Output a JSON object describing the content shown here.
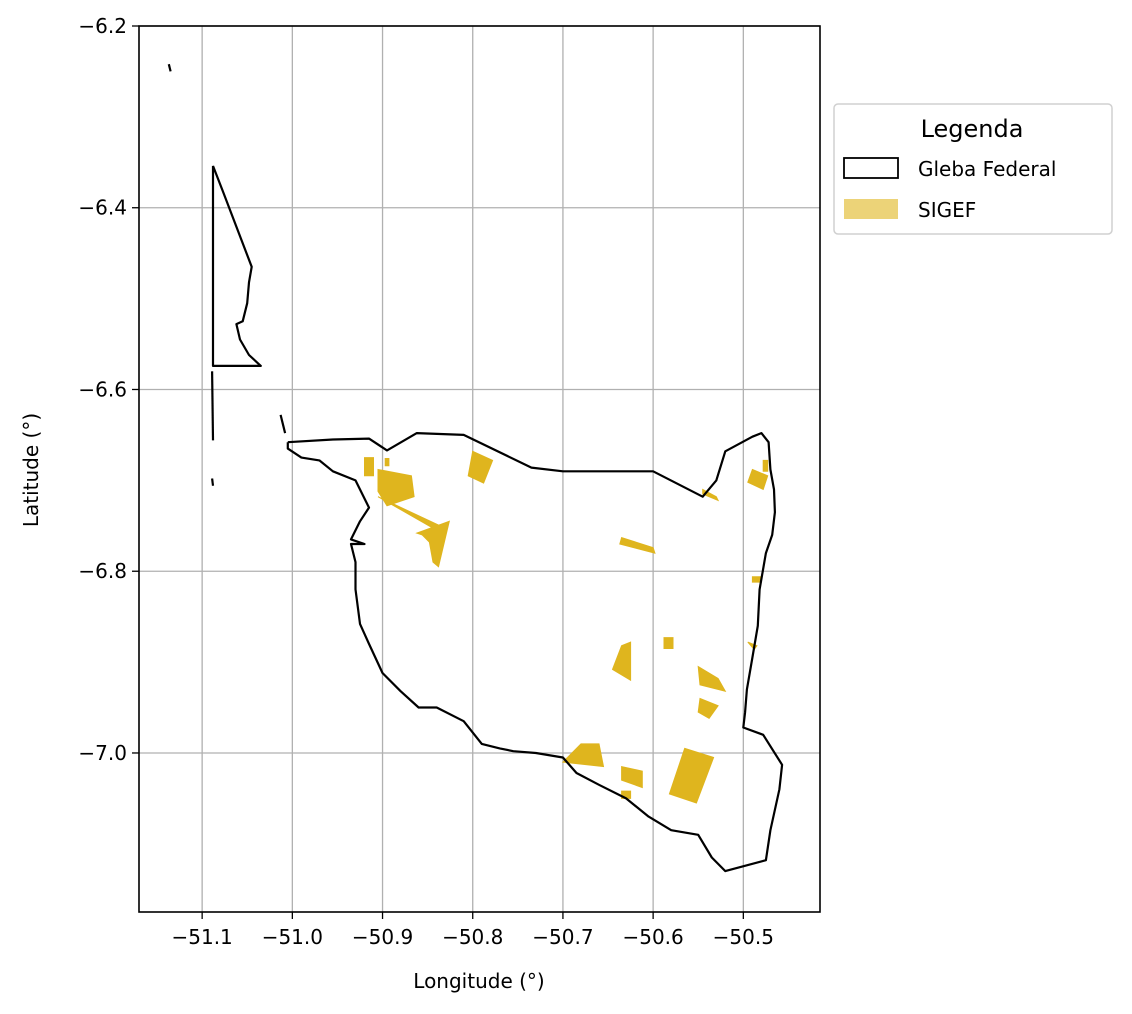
{
  "chart_data": {
    "type": "map",
    "xlabel": "Longitude (°)",
    "ylabel": "Latitude (°)",
    "xlim": [
      -51.17,
      -50.415
    ],
    "ylim": [
      -7.175,
      -6.2
    ],
    "grid": true,
    "xticks": [
      {
        "value": -51.1,
        "label": "−51.1"
      },
      {
        "value": -51.0,
        "label": "−51.0"
      },
      {
        "value": -50.9,
        "label": "−50.9"
      },
      {
        "value": -50.8,
        "label": "−50.8"
      },
      {
        "value": -50.7,
        "label": "−50.7"
      },
      {
        "value": -50.6,
        "label": "−50.6"
      },
      {
        "value": -50.5,
        "label": "−50.5"
      }
    ],
    "yticks": [
      {
        "value": -6.2,
        "label": "−6.2"
      },
      {
        "value": -6.4,
        "label": "−6.4"
      },
      {
        "value": -6.6,
        "label": "−6.6"
      },
      {
        "value": -6.8,
        "label": "−6.8"
      },
      {
        "value": -7.0,
        "label": "−7.0"
      }
    ],
    "legend": {
      "title": "Legenda",
      "placement": "outside-upper-right",
      "entries": [
        {
          "label": "Gleba Federal",
          "style": "outline",
          "color": "#000000"
        },
        {
          "label": "SIGEF",
          "style": "fill",
          "color": "#dfb51e"
        }
      ]
    },
    "colors": {
      "gleba_outline": "#000000",
      "sigef_fill": "#dfb51e",
      "grid": "#b0b0b0"
    },
    "gleba_federal": [
      [
        [
          -51.088,
          -6.354
        ],
        [
          -51.077,
          -6.382
        ],
        [
          -51.045,
          -6.465
        ],
        [
          -51.048,
          -6.482
        ],
        [
          -51.05,
          -6.505
        ],
        [
          -51.055,
          -6.525
        ],
        [
          -51.062,
          -6.528
        ],
        [
          -51.058,
          -6.545
        ],
        [
          -51.048,
          -6.562
        ],
        [
          -51.035,
          -6.574
        ],
        [
          -51.088,
          -6.574
        ],
        [
          -51.088,
          -6.354
        ]
      ],
      [
        [
          -51.089,
          -6.58
        ],
        [
          -51.088,
          -6.656
        ]
      ],
      [
        [
          -51.089,
          -6.698
        ],
        [
          -51.088,
          -6.706
        ]
      ],
      [
        [
          -51.137,
          -6.242
        ],
        [
          -51.135,
          -6.25
        ]
      ],
      [
        [
          -51.013,
          -6.628
        ],
        [
          -51.01,
          -6.64
        ],
        [
          -51.008,
          -6.648
        ]
      ],
      [
        [
          -51.005,
          -6.658
        ],
        [
          -50.955,
          -6.655
        ],
        [
          -50.915,
          -6.654
        ],
        [
          -50.895,
          -6.667
        ],
        [
          -50.862,
          -6.648
        ],
        [
          -50.81,
          -6.65
        ],
        [
          -50.735,
          -6.686
        ],
        [
          -50.7,
          -6.69
        ],
        [
          -50.6,
          -6.69
        ],
        [
          -50.545,
          -6.718
        ],
        [
          -50.53,
          -6.7
        ],
        [
          -50.52,
          -6.668
        ],
        [
          -50.49,
          -6.652
        ],
        [
          -50.48,
          -6.648
        ],
        [
          -50.472,
          -6.658
        ],
        [
          -50.47,
          -6.688
        ],
        [
          -50.466,
          -6.71
        ],
        [
          -50.465,
          -6.735
        ],
        [
          -50.468,
          -6.76
        ],
        [
          -50.475,
          -6.78
        ],
        [
          -50.482,
          -6.82
        ],
        [
          -50.484,
          -6.86
        ],
        [
          -50.49,
          -6.895
        ],
        [
          -50.496,
          -6.93
        ],
        [
          -50.498,
          -6.955
        ],
        [
          -50.5,
          -6.972
        ],
        [
          -50.478,
          -6.98
        ],
        [
          -50.457,
          -7.013
        ],
        [
          -50.46,
          -7.04
        ],
        [
          -50.47,
          -7.085
        ],
        [
          -50.475,
          -7.118
        ],
        [
          -50.52,
          -7.13
        ],
        [
          -50.535,
          -7.115
        ],
        [
          -50.55,
          -7.09
        ],
        [
          -50.58,
          -7.085
        ],
        [
          -50.605,
          -7.07
        ],
        [
          -50.63,
          -7.05
        ],
        [
          -50.66,
          -7.035
        ],
        [
          -50.685,
          -7.022
        ],
        [
          -50.7,
          -7.005
        ],
        [
          -50.73,
          -7.0
        ],
        [
          -50.755,
          -6.998
        ],
        [
          -50.77,
          -6.995
        ],
        [
          -50.79,
          -6.99
        ],
        [
          -50.81,
          -6.965
        ],
        [
          -50.84,
          -6.95
        ],
        [
          -50.86,
          -6.95
        ],
        [
          -50.88,
          -6.932
        ],
        [
          -50.9,
          -6.912
        ],
        [
          -50.915,
          -6.88
        ],
        [
          -50.925,
          -6.858
        ],
        [
          -50.93,
          -6.82
        ],
        [
          -50.93,
          -6.79
        ],
        [
          -50.935,
          -6.77
        ],
        [
          -50.92,
          -6.77
        ],
        [
          -50.935,
          -6.765
        ],
        [
          -50.925,
          -6.745
        ],
        [
          -50.915,
          -6.73
        ],
        [
          -50.93,
          -6.7
        ],
        [
          -50.955,
          -6.69
        ],
        [
          -50.97,
          -6.678
        ],
        [
          -50.99,
          -6.675
        ],
        [
          -51.005,
          -6.665
        ],
        [
          -51.005,
          -6.658
        ]
      ]
    ],
    "sigef": [
      [
        [
          -50.92,
          -6.675
        ],
        [
          -50.91,
          -6.675
        ],
        [
          -50.91,
          -6.695
        ],
        [
          -50.92,
          -6.695
        ]
      ],
      [
        [
          -50.897,
          -6.676
        ],
        [
          -50.893,
          -6.676
        ],
        [
          -50.893,
          -6.684
        ],
        [
          -50.897,
          -6.684
        ]
      ],
      [
        [
          -50.905,
          -6.688
        ],
        [
          -50.868,
          -6.695
        ],
        [
          -50.865,
          -6.718
        ],
        [
          -50.895,
          -6.728
        ],
        [
          -50.905,
          -6.712
        ]
      ],
      [
        [
          -50.905,
          -6.718
        ],
        [
          -50.845,
          -6.752
        ],
        [
          -50.832,
          -6.752
        ],
        [
          -50.89,
          -6.725
        ]
      ],
      [
        [
          -50.826,
          -6.745
        ],
        [
          -50.838,
          -6.795
        ],
        [
          -50.844,
          -6.79
        ],
        [
          -50.848,
          -6.768
        ],
        [
          -50.856,
          -6.76
        ],
        [
          -50.862,
          -6.758
        ]
      ],
      [
        [
          -50.8,
          -6.668
        ],
        [
          -50.778,
          -6.678
        ],
        [
          -50.788,
          -6.703
        ],
        [
          -50.805,
          -6.695
        ]
      ],
      [
        [
          -50.635,
          -6.763
        ],
        [
          -50.6,
          -6.774
        ],
        [
          -50.598,
          -6.78
        ],
        [
          -50.637,
          -6.77
        ]
      ],
      [
        [
          -50.545,
          -6.71
        ],
        [
          -50.53,
          -6.718
        ],
        [
          -50.528,
          -6.722
        ],
        [
          -50.545,
          -6.715
        ]
      ],
      [
        [
          -50.49,
          -6.688
        ],
        [
          -50.473,
          -6.695
        ],
        [
          -50.478,
          -6.71
        ],
        [
          -50.495,
          -6.702
        ]
      ],
      [
        [
          -50.478,
          -6.678
        ],
        [
          -50.473,
          -6.678
        ],
        [
          -50.473,
          -6.69
        ],
        [
          -50.478,
          -6.69
        ]
      ],
      [
        [
          -50.49,
          -6.806
        ],
        [
          -50.48,
          -6.806
        ],
        [
          -50.48,
          -6.812
        ],
        [
          -50.49,
          -6.812
        ]
      ],
      [
        [
          -50.588,
          -6.873
        ],
        [
          -50.578,
          -6.873
        ],
        [
          -50.578,
          -6.885
        ],
        [
          -50.588,
          -6.885
        ]
      ],
      [
        [
          -50.635,
          -6.882
        ],
        [
          -50.625,
          -6.878
        ],
        [
          -50.625,
          -6.92
        ],
        [
          -50.645,
          -6.908
        ]
      ],
      [
        [
          -50.55,
          -6.905
        ],
        [
          -50.528,
          -6.918
        ],
        [
          -50.52,
          -6.932
        ],
        [
          -50.548,
          -6.925
        ]
      ],
      [
        [
          -50.495,
          -6.878
        ],
        [
          -50.485,
          -6.882
        ],
        [
          -50.488,
          -6.886
        ]
      ],
      [
        [
          -50.548,
          -6.94
        ],
        [
          -50.528,
          -6.948
        ],
        [
          -50.538,
          -6.962
        ],
        [
          -50.55,
          -6.955
        ]
      ],
      [
        [
          -50.68,
          -6.99
        ],
        [
          -50.66,
          -6.99
        ],
        [
          -50.655,
          -7.015
        ],
        [
          -50.7,
          -7.01
        ]
      ],
      [
        [
          -50.635,
          -7.015
        ],
        [
          -50.612,
          -7.02
        ],
        [
          -50.612,
          -7.038
        ],
        [
          -50.635,
          -7.03
        ]
      ],
      [
        [
          -50.635,
          -7.042
        ],
        [
          -50.625,
          -7.042
        ],
        [
          -50.625,
          -7.05
        ],
        [
          -50.635,
          -7.05
        ]
      ],
      [
        [
          -50.565,
          -6.995
        ],
        [
          -50.533,
          -7.005
        ],
        [
          -50.552,
          -7.055
        ],
        [
          -50.582,
          -7.045
        ]
      ]
    ]
  }
}
